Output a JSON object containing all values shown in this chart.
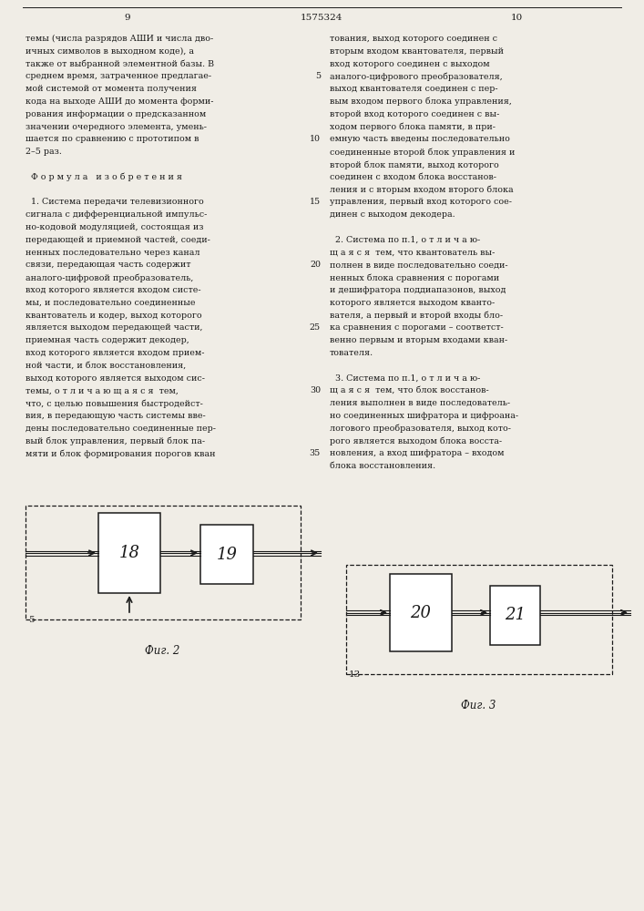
{
  "page_num_left": "9",
  "page_num_center": "1575324",
  "page_num_right": "10",
  "background_color": "#f0ede6",
  "text_color": "#1a1a1a",
  "font_size_body": 6.8,
  "left_column_text": [
    "темы (числа разрядов АШИ и числа дво-",
    "ичных символов в выходном коде), а",
    "также от выбранной элементной базы. В",
    "среднем время, затраченное предлагае-",
    "мой системой от момента получения",
    "кода на выходе АШИ до момента форми-",
    "рования информации о предсказанном",
    "значении очередного элемента, умень-",
    "шается по сравнению с прототипом в",
    "2–5 раз.",
    "",
    "  Ф о р м у л а   и з о б р е т е н и я",
    "",
    "  1. Система передачи телевизионного",
    "сигнала с дифференциальной импульс-",
    "но-кодовой модуляцией, состоящая из",
    "передающей и приемной частей, соеди-",
    "ненных последовательно через канал",
    "связи, передающая часть содержит",
    "аналого-цифровой преобразователь,",
    "вход которого является входом систе-",
    "мы, и последовательно соединенные",
    "квантователь и кодер, выход которого",
    "является выходом передающей части,",
    "приемная часть содержит декодер,",
    "вход которого является входом прием-",
    "ной части, и блок восстановления,",
    "выход которого является выходом сис-",
    "темы, о т л и ч а ю щ а я с я  тем,",
    "что, с целью повышения быстродейст-",
    "вия, в передающую часть системы вве-",
    "дены последовательно соединенные пер-",
    "вый блок управления, первый блок па-",
    "мяти и блок формирования порогов кван"
  ],
  "right_column_text": [
    "тования, выход которого соединен с",
    "вторым входом квантователя, первый",
    "вход которого соединен с выходом",
    "аналого-цифрового преобразователя,",
    "выход квантователя соединен с пер-",
    "вым входом первого блока управления,",
    "второй вход которого соединен с вы-",
    "ходом первого блока памяти, в при-",
    "емную часть введены последовательно",
    "соединенные второй блок управления и",
    "второй блок памяти, выход которого",
    "соединен с входом блока восстанов-",
    "ления и с вторым входом второго блока",
    "управления, первый вход которого сое-",
    "динен с выходом декодера.",
    "",
    "  2. Система по п.1, о т л и ч а ю-",
    "щ а я с я  тем, что квантователь вы-",
    "полнен в виде последовательно соеди-",
    "ненных блока сравнения с порогами",
    "и дешифратора поддиапазонов, выход",
    "которого является выходом кванто-",
    "вателя, а первый и второй входы бло-",
    "ка сравнения с порогами – соответст-",
    "венно первым и вторым входами кван-",
    "тователя.",
    "",
    "  3. Система по п.1, о т л и ч а ю-",
    "щ а я с я  тем, что блок восстанов-",
    "ления выполнен в виде последователь-",
    "но соединенных шифратора и цифроана-",
    "логового преобразователя, выход кото-",
    "рого является выходом блока восста-",
    "новления, а вход шифратора – входом",
    "блока восстановления."
  ],
  "line_numbers": [
    "5",
    "10",
    "15",
    "20",
    "25",
    "30",
    "35"
  ],
  "line_number_rows": [
    3,
    8,
    13,
    18,
    23,
    28,
    33
  ],
  "fig2_label": "Фиг. 2",
  "fig3_label": "Фиг. 3",
  "fig2_box18_label": "18",
  "fig2_box19_label": "19",
  "fig2_input_label": "5",
  "fig3_box20_label": "20",
  "fig3_box21_label": "21",
  "fig3_input_label": "13"
}
